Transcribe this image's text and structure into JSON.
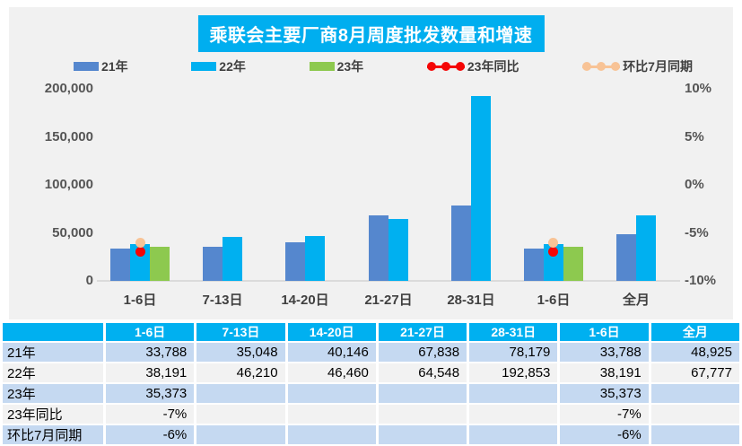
{
  "title": "乘联会主要厂商8月周度批发数量和增速",
  "colors": {
    "title_bg": "#00AEEF",
    "bar_21": "#5587CE",
    "bar_22": "#00B0F0",
    "bar_23": "#8DC94F",
    "dot_yoy": "#F50505",
    "dot_mom": "#F8C396",
    "panel_bg": "#F1F1F1",
    "table_header_bg": "#00B0F0",
    "row_blue": "#C5D9F1",
    "row_gray": "#F2F2F2"
  },
  "legend": [
    {
      "label": "21年",
      "type": "bar",
      "color": "#5587CE"
    },
    {
      "label": "22年",
      "type": "bar",
      "color": "#00B0F0"
    },
    {
      "label": "23年",
      "type": "bar",
      "color": "#8DC94F"
    },
    {
      "label": "23年同比",
      "type": "dots",
      "color": "#F50505"
    },
    {
      "label": "环比7月同期",
      "type": "dots",
      "color": "#F8C396"
    }
  ],
  "chart_data": {
    "type": "bar",
    "title": "乘联会主要厂商8月周度批发数量和增速",
    "categories": [
      "1-6日",
      "7-13日",
      "14-20日",
      "21-27日",
      "28-31日",
      "1-6日",
      "全月"
    ],
    "series": [
      {
        "name": "21年",
        "type": "bar",
        "color": "#5587CE",
        "values": [
          33788,
          35048,
          40146,
          67838,
          78179,
          33788,
          48925
        ]
      },
      {
        "name": "22年",
        "type": "bar",
        "color": "#00B0F0",
        "values": [
          38191,
          46210,
          46460,
          64548,
          192853,
          38191,
          67777
        ]
      },
      {
        "name": "23年",
        "type": "bar",
        "color": "#8DC94F",
        "values": [
          35373,
          null,
          null,
          null,
          null,
          35373,
          null
        ]
      },
      {
        "name": "23年同比",
        "type": "point",
        "axis": "right",
        "color": "#F50505",
        "values": [
          -7,
          null,
          null,
          null,
          null,
          -7,
          null
        ]
      },
      {
        "name": "环比7月同期",
        "type": "point",
        "axis": "right",
        "color": "#F8C396",
        "values": [
          -6,
          null,
          null,
          null,
          null,
          -6,
          null
        ]
      }
    ],
    "left_axis": {
      "min": 0,
      "max": 200000,
      "tick_values": [
        0,
        50000,
        100000,
        150000,
        200000
      ],
      "tick_labels": [
        "0",
        "50,000",
        "100,000",
        "150,000",
        "200,000"
      ]
    },
    "right_axis": {
      "min": -10,
      "max": 10,
      "tick_values": [
        -10,
        -5,
        0,
        5,
        10
      ],
      "tick_labels": [
        "-10%",
        "-5%",
        "0%",
        "5%",
        "10%"
      ]
    },
    "grid": false,
    "legend_position": "top"
  },
  "table": {
    "columns": [
      "",
      "1-6日",
      "7-13日",
      "14-20日",
      "21-27日",
      "28-31日",
      "1-6日",
      "全月"
    ],
    "rows": [
      {
        "label": "21年",
        "cells": [
          "33,788",
          "35,048",
          "40,146",
          "67,838",
          "78,179",
          "33,788",
          "48,925"
        ]
      },
      {
        "label": "22年",
        "cells": [
          "38,191",
          "46,210",
          "46,460",
          "64,548",
          "192,853",
          "38,191",
          "67,777"
        ]
      },
      {
        "label": "23年",
        "cells": [
          "35,373",
          "",
          "",
          "",
          "",
          "35,373",
          ""
        ]
      },
      {
        "label": "23年同比",
        "cells": [
          "-7%",
          "",
          "",
          "",
          "",
          "-7%",
          ""
        ]
      },
      {
        "label": "环比7月同期",
        "cells": [
          "-6%",
          "",
          "",
          "",
          "",
          "-6%",
          ""
        ]
      }
    ]
  }
}
